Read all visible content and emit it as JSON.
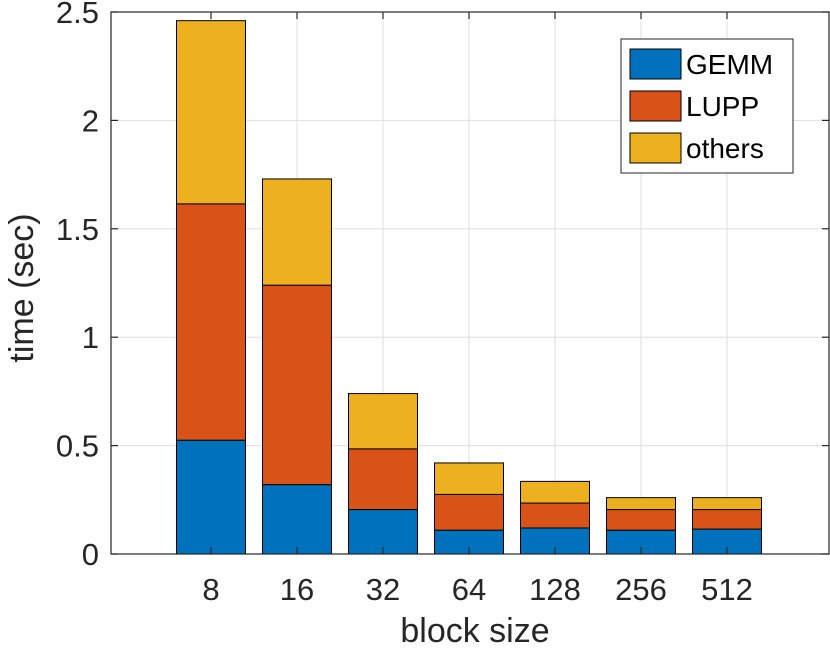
{
  "chart_data": {
    "type": "bar",
    "stacked": true,
    "title": "",
    "xlabel": "block size",
    "ylabel": "time (sec)",
    "categories": [
      "8",
      "16",
      "32",
      "64",
      "128",
      "256",
      "512"
    ],
    "series": [
      {
        "name": "GEMM",
        "color": "#0072BD",
        "values": [
          0.525,
          0.32,
          0.205,
          0.11,
          0.12,
          0.11,
          0.115
        ]
      },
      {
        "name": "LUPP",
        "color": "#D95319",
        "values": [
          1.09,
          0.92,
          0.28,
          0.165,
          0.115,
          0.095,
          0.09
        ]
      },
      {
        "name": "others",
        "color": "#EDB120",
        "values": [
          0.845,
          0.49,
          0.255,
          0.145,
          0.1,
          0.055,
          0.055
        ]
      }
    ],
    "ylim": [
      0,
      2.5
    ],
    "yticks": [
      0,
      0.5,
      1,
      1.5,
      2,
      2.5
    ],
    "ytick_labels": [
      "0",
      "0.5",
      "1",
      "1.5",
      "2",
      "2.5"
    ],
    "grid": true,
    "legend_position": "top-right"
  }
}
